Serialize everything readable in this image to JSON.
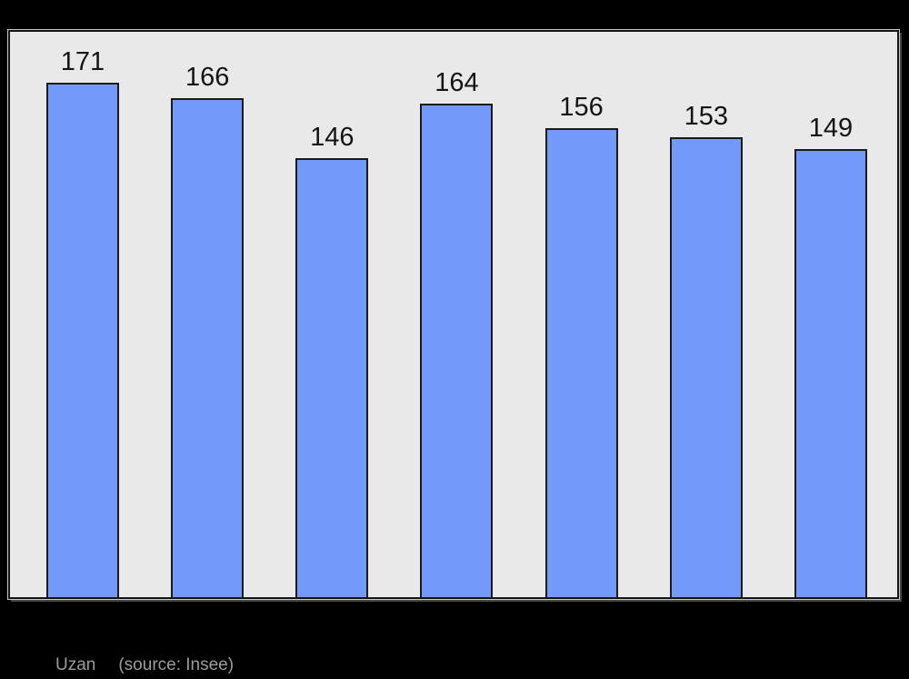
{
  "caption": {
    "title": "Uzan",
    "source": "(source: Insee)"
  },
  "colors": {
    "page_background": "#000000",
    "plot_background": "#e9e9e9",
    "bar_fill": "#7399fa",
    "bar_border": "#1a1a1a",
    "box_border": "#141414",
    "caption_text": "#9b9b9b",
    "label_text": "#141414"
  },
  "chart_data": {
    "type": "bar",
    "values": [
      171,
      166,
      146,
      164,
      156,
      153,
      149
    ],
    "bar_labels": [
      "171",
      "166",
      "146",
      "164",
      "156",
      "153",
      "149"
    ],
    "title": "",
    "xlabel": "",
    "ylabel": "",
    "ylim": [
      0,
      188
    ],
    "grid": false,
    "legend": null,
    "bar_count": 7,
    "caption": "Uzan (source: Insee)"
  }
}
